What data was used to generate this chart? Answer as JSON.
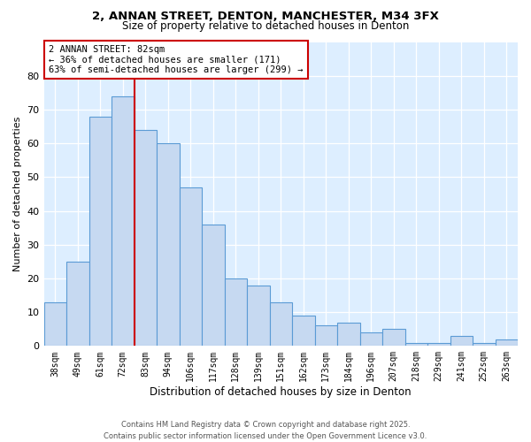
{
  "title_line1": "2, ANNAN STREET, DENTON, MANCHESTER, M34 3FX",
  "title_line2": "Size of property relative to detached houses in Denton",
  "xlabel": "Distribution of detached houses by size in Denton",
  "ylabel": "Number of detached properties",
  "categories": [
    "38sqm",
    "49sqm",
    "61sqm",
    "72sqm",
    "83sqm",
    "94sqm",
    "106sqm",
    "117sqm",
    "128sqm",
    "139sqm",
    "151sqm",
    "162sqm",
    "173sqm",
    "184sqm",
    "196sqm",
    "207sqm",
    "218sqm",
    "229sqm",
    "241sqm",
    "252sqm",
    "263sqm"
  ],
  "values": [
    13,
    25,
    68,
    74,
    64,
    60,
    47,
    36,
    20,
    18,
    13,
    9,
    6,
    7,
    4,
    5,
    1,
    1,
    3,
    1,
    2
  ],
  "bar_color": "#c6d9f1",
  "bar_edge_color": "#5b9bd5",
  "property_line_x": 3.5,
  "property_line_color": "#cc0000",
  "annotation_text": "2 ANNAN STREET: 82sqm\n← 36% of detached houses are smaller (171)\n63% of semi-detached houses are larger (299) →",
  "annotation_box_color": "#ffffff",
  "annotation_box_edge_color": "#cc0000",
  "ylim": [
    0,
    90
  ],
  "yticks": [
    0,
    10,
    20,
    30,
    40,
    50,
    60,
    70,
    80
  ],
  "background_color": "#ddeeff",
  "footnote_line1": "Contains HM Land Registry data © Crown copyright and database right 2025.",
  "footnote_line2": "Contains public sector information licensed under the Open Government Licence v3.0."
}
